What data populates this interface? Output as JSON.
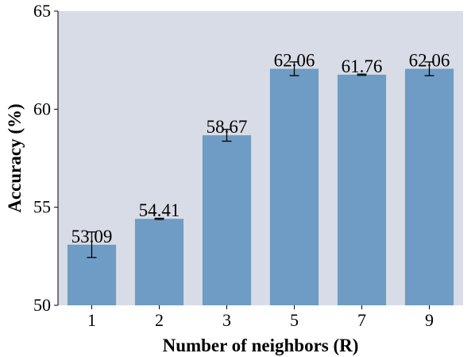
{
  "chart_data": {
    "type": "bar",
    "title": "",
    "xlabel": "Number of neighbors (R)",
    "ylabel": "Accuracy (%)",
    "categories": [
      "1",
      "2",
      "3",
      "5",
      "7",
      "9"
    ],
    "values": [
      53.09,
      54.41,
      58.67,
      62.06,
      61.76,
      62.06
    ],
    "value_labels": [
      "53.09",
      "54.41",
      "58.67",
      "62.06",
      "61.76",
      "62.06"
    ],
    "error": [
      0.65,
      0.03,
      0.3,
      0.35,
      0.03,
      0.35
    ],
    "ylim": [
      50,
      65
    ],
    "yticks": [
      50,
      55,
      60,
      65
    ],
    "ytick_labels": [
      "50",
      "55",
      "60",
      "65"
    ],
    "grid": false,
    "colors": {
      "bar": "#6f9cc4",
      "background": "#d8dce6",
      "error_bar": "#000000"
    }
  }
}
